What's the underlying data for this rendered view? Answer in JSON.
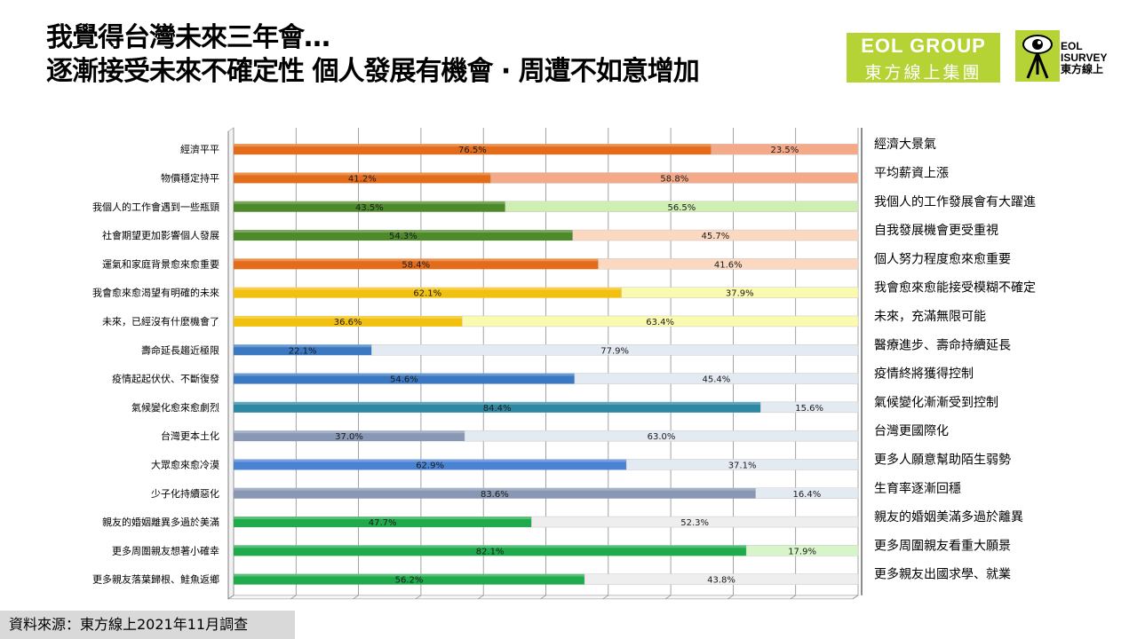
{
  "header": {
    "title_line1": "我覺得台灣未來三年會…",
    "title_line2": "逐漸接受未來不確定性 個人發展有機會 · 周遭不如意增加",
    "logo_eol_line1": "EOL GROUP",
    "logo_eol_line2": "東方線上集團",
    "logo_survey_line1": "EOL",
    "logo_survey_line2": "ISURVEY",
    "logo_survey_line3": "東方線上"
  },
  "footer": {
    "source": "資料來源：東方線上2021年11月調查"
  },
  "chart_data": {
    "type": "bar",
    "orientation": "horizontal-stacked-100",
    "xlim": [
      0,
      100
    ],
    "grid": true,
    "rows": [
      {
        "left_label": "經濟平平",
        "right_label": "經濟大景氣",
        "left_value": 76.5,
        "right_value": 23.5,
        "left_text": "76.5%",
        "right_text": "23.5%",
        "left_color": "#e36c1b",
        "right_color": "#f4a988"
      },
      {
        "left_label": "物價穩定持平",
        "right_label": "平均薪資上漲",
        "left_value": 41.2,
        "right_value": 58.8,
        "left_text": "41.2%",
        "right_text": "58.8%",
        "left_color": "#e36c1b",
        "right_color": "#f4a988"
      },
      {
        "left_label": "我個人的工作會遇到一些瓶頸",
        "right_label": "我個人的工作發展會有大躍進",
        "left_value": 43.5,
        "right_value": 56.5,
        "left_text": "43.5%",
        "right_text": "56.5%",
        "left_color": "#4e8a2a",
        "right_color": "#cfeeb2"
      },
      {
        "left_label": "社會期望更加影響個人發展",
        "right_label": "自我發展機會更受重視",
        "left_value": 54.3,
        "right_value": 45.7,
        "left_text": "54.3%",
        "right_text": "45.7%",
        "left_color": "#4e8a2a",
        "right_color": "#fbd8bf"
      },
      {
        "left_label": "運氣和家庭背景愈來愈重要",
        "right_label": "個人努力程度愈來愈重要",
        "left_value": 58.4,
        "right_value": 41.6,
        "left_text": "58.4%",
        "right_text": "41.6%",
        "left_color": "#e36c1b",
        "right_color": "#fbd8bf"
      },
      {
        "left_label": "我會愈來愈渴望有明確的未來",
        "right_label": "我會愈來愈能接受模糊不確定",
        "left_value": 62.1,
        "right_value": 37.9,
        "left_text": "62.1%",
        "right_text": "37.9%",
        "left_color": "#f2c00f",
        "right_color": "#fafab0"
      },
      {
        "left_label": "未來，已經沒有什麼機會了",
        "right_label": "未來，充滿無限可能",
        "left_value": 36.6,
        "right_value": 63.4,
        "left_text": "36.6%",
        "right_text": "63.4%",
        "left_color": "#f2c00f",
        "right_color": "#fafab0"
      },
      {
        "left_label": "壽命延長趨近極限",
        "right_label": "醫療進步、壽命持續延長",
        "left_value": 22.1,
        "right_value": 77.9,
        "left_text": "22.1%",
        "right_text": "77.9%",
        "left_color": "#3a78c2",
        "right_color": "#e3eaf2"
      },
      {
        "left_label": "疫情起起伏伏、不斷復發",
        "right_label": "疫情終將獲得控制",
        "left_value": 54.6,
        "right_value": 45.4,
        "left_text": "54.6%",
        "right_text": "45.4%",
        "left_color": "#3a78c2",
        "right_color": "#e3eaf2"
      },
      {
        "left_label": "氣候變化愈來愈劇烈",
        "right_label": "氣候變化漸漸受到控制",
        "left_value": 84.4,
        "right_value": 15.6,
        "left_text": "84.4%",
        "right_text": "15.6%",
        "left_color": "#2d88a3",
        "right_color": "#e3eaf2"
      },
      {
        "left_label": "台灣更本土化",
        "right_label": "台灣更國際化",
        "left_value": 37.0,
        "right_value": 63.0,
        "left_text": "37.0%",
        "right_text": "63.0%",
        "left_color": "#8897b4",
        "right_color": "#e3eaf2"
      },
      {
        "left_label": "大眾愈來愈冷漠",
        "right_label": "更多人願意幫助陌生弱勢",
        "left_value": 62.9,
        "right_value": 37.1,
        "left_text": "62.9%",
        "right_text": "37.1%",
        "left_color": "#4a82d4",
        "right_color": "#e3eaf2"
      },
      {
        "left_label": "少子化持續惡化",
        "right_label": "生育率逐漸回穩",
        "left_value": 83.6,
        "right_value": 16.4,
        "left_text": "83.6%",
        "right_text": "16.4%",
        "left_color": "#8897b4",
        "right_color": "#e3eaf2"
      },
      {
        "left_label": "親友的婚姻離異多過於美滿",
        "right_label": "親友的婚姻美滿多過於離異",
        "left_value": 47.7,
        "right_value": 52.3,
        "left_text": "47.7%",
        "right_text": "52.3%",
        "left_color": "#1faa4c",
        "right_color": "#eeeeee"
      },
      {
        "left_label": "更多周圍親友想著小確幸",
        "right_label": "更多周圍親友看重大願景",
        "left_value": 82.1,
        "right_value": 17.9,
        "left_text": "82.1%",
        "right_text": "17.9%",
        "left_color": "#1faa4c",
        "right_color": "#d7f5c9"
      },
      {
        "left_label": "更多親友落葉歸根、鮭魚返鄉",
        "right_label": "更多親友出國求學、就業",
        "left_value": 56.2,
        "right_value": 43.8,
        "left_text": "56.2%",
        "right_text": "43.8%",
        "left_color": "#1faa4c",
        "right_color": "#eeeeee"
      }
    ]
  }
}
